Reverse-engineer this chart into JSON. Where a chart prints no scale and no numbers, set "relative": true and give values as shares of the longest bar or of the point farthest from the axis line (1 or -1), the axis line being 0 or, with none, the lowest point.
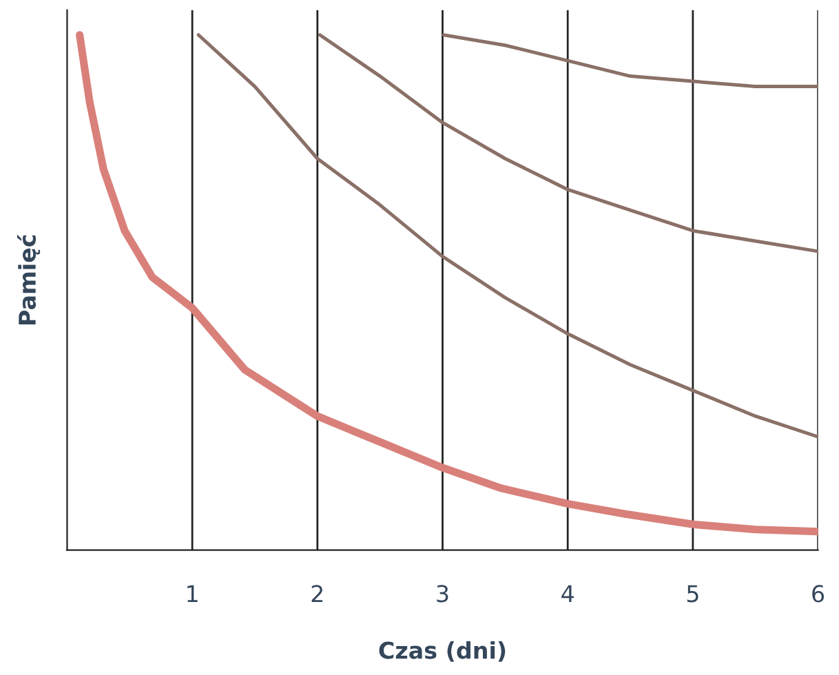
{
  "chart_data": {
    "type": "line",
    "xlabel": "Czas (dni)",
    "ylabel": "Pamięć",
    "relative": true,
    "xlim": [
      0,
      6
    ],
    "xticks": [
      1,
      2,
      3,
      4,
      5,
      6
    ],
    "grid": "x",
    "legend": false,
    "marker": "none",
    "line_style": "solid",
    "series": [
      {
        "color": "#d9807a",
        "x": [
          0.1,
          0.18,
          0.29,
          0.46,
          0.68,
          1,
          1.42,
          2,
          2.5,
          3,
          3.47,
          4,
          4.46,
          5,
          5.5,
          6
        ],
        "values": [
          1,
          0.87,
          0.74,
          0.62,
          0.53,
          0.47,
          0.35,
          0.26,
          0.21,
          0.16,
          0.12,
          0.09,
          0.07,
          0.05,
          0.04,
          0.036
        ]
      },
      {
        "color": "#8a7067",
        "x": [
          1.05,
          1.5,
          2,
          2.5,
          3,
          3.5,
          4,
          4.5,
          5,
          5.5,
          6
        ],
        "values": [
          1,
          0.9,
          0.76,
          0.67,
          0.57,
          0.49,
          0.42,
          0.36,
          0.31,
          0.26,
          0.22
        ]
      },
      {
        "color": "#8a7067",
        "x": [
          2.02,
          2.5,
          3,
          3.5,
          4,
          4.5,
          5,
          5.5,
          6
        ],
        "values": [
          1,
          0.92,
          0.83,
          0.76,
          0.7,
          0.66,
          0.62,
          0.6,
          0.58
        ]
      },
      {
        "color": "#8a7067",
        "x": [
          3.01,
          3.5,
          4,
          4.5,
          5,
          5.5,
          6
        ],
        "values": [
          1,
          0.98,
          0.95,
          0.92,
          0.91,
          0.9,
          0.9
        ]
      }
    ]
  }
}
